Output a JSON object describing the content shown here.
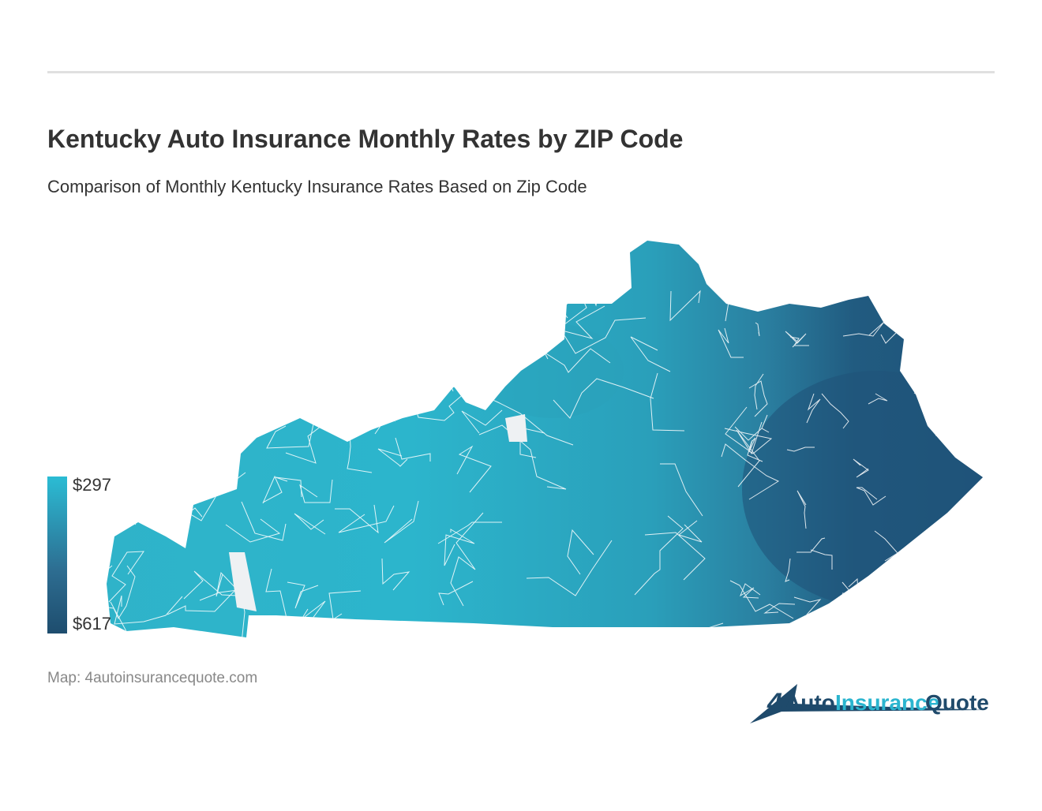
{
  "header": {
    "title": "Kentucky Auto Insurance Monthly Rates by ZIP Code",
    "subtitle": "Comparison of Monthly Kentucky Insurance Rates Based on Zip Code"
  },
  "legend": {
    "low_label": "$297",
    "high_label": "$617"
  },
  "footer": {
    "source": "Map: 4autoinsurancequote.com",
    "logo": {
      "mark": "4",
      "part1": "Auto",
      "part2": "Insurance",
      "part3": "Quote"
    }
  }
}
